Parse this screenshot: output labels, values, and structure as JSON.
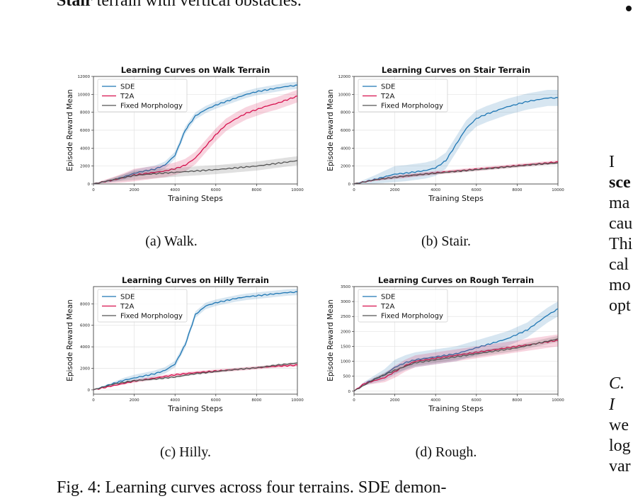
{
  "top_text": {
    "bold": "Stair",
    "rest": " terrain with vertical obstacles."
  },
  "right_column": {
    "lines": [
      "I",
      "sce",
      "ma",
      "cau",
      "Thi",
      "cal",
      "mo",
      "opt"
    ],
    "section": "C.",
    "lines2": [
      "I",
      "we",
      "log",
      "var"
    ]
  },
  "captions": [
    "(a) Walk.",
    "(b) Stair.",
    "(c) Hilly.",
    "(d) Rough."
  ],
  "figure_caption": "Fig. 4: Learning curves across four terrains. SDE demon-",
  "colors": {
    "SDE": "#1f77b4",
    "T2A": "#d6114e",
    "Fixed Morphology": "#555555"
  },
  "chart_data": [
    {
      "type": "line",
      "title": "Learning Curves on Walk Terrain",
      "xlabel": "Training Steps",
      "ylabel": "Episode Reward Mean",
      "xlim": [
        0,
        10000
      ],
      "ylim": [
        0,
        12000
      ],
      "xticks": [
        0,
        2000,
        4000,
        6000,
        8000,
        10000
      ],
      "yticks": [
        0,
        2000,
        4000,
        6000,
        8000,
        10000,
        12000
      ],
      "legend": "top-left",
      "grid": true,
      "series": [
        {
          "name": "SDE",
          "x": [
            0,
            500,
            1000,
            1500,
            2000,
            2500,
            3000,
            3500,
            4000,
            4500,
            5000,
            5500,
            6000,
            6500,
            7000,
            7500,
            8000,
            8500,
            9000,
            9500,
            10000
          ],
          "y": [
            0,
            250,
            450,
            800,
            1200,
            1450,
            1650,
            2100,
            3200,
            6000,
            7600,
            8300,
            8800,
            9200,
            9600,
            10000,
            10300,
            10500,
            10700,
            10900,
            11000
          ],
          "band": 400
        },
        {
          "name": "T2A",
          "x": [
            0,
            500,
            1000,
            1500,
            2000,
            2500,
            3000,
            3500,
            4000,
            4500,
            5000,
            5500,
            6000,
            6500,
            7000,
            7500,
            8000,
            8500,
            9000,
            9500,
            10000
          ],
          "y": [
            0,
            250,
            450,
            700,
            1000,
            1150,
            1300,
            1450,
            1700,
            2100,
            2900,
            4200,
            5500,
            6600,
            7300,
            7900,
            8300,
            8700,
            9000,
            9400,
            9800
          ],
          "band": 700
        },
        {
          "name": "Fixed Morphology",
          "x": [
            0,
            1000,
            2000,
            3000,
            4000,
            5000,
            6000,
            7000,
            8000,
            9000,
            10000
          ],
          "y": [
            0,
            500,
            950,
            1150,
            1300,
            1450,
            1600,
            1800,
            2000,
            2300,
            2600
          ],
          "band": 500
        }
      ]
    },
    {
      "type": "line",
      "title": "Learning Curves on Stair Terrain",
      "xlabel": "Training Steps",
      "ylabel": "Episode Reward Mean",
      "xlim": [
        0,
        10000
      ],
      "ylim": [
        0,
        12000
      ],
      "xticks": [
        0,
        2000,
        4000,
        6000,
        8000,
        10000
      ],
      "yticks": [
        0,
        2000,
        4000,
        6000,
        8000,
        10000,
        12000
      ],
      "legend": "top-left",
      "grid": true,
      "series": [
        {
          "name": "SDE",
          "x": [
            0,
            500,
            1000,
            1500,
            2000,
            2500,
            3000,
            3500,
            4000,
            4500,
            5000,
            5500,
            6000,
            6500,
            7000,
            7500,
            8000,
            8500,
            9000,
            9500,
            10000
          ],
          "y": [
            0,
            250,
            500,
            800,
            1100,
            1200,
            1350,
            1500,
            1800,
            2600,
            4400,
            6200,
            7300,
            7800,
            8200,
            8600,
            8900,
            9200,
            9400,
            9600,
            9600
          ],
          "band": 900
        },
        {
          "name": "T2A",
          "x": [
            0,
            1000,
            2000,
            3000,
            4000,
            5000,
            6000,
            7000,
            8000,
            9000,
            10000
          ],
          "y": [
            0,
            450,
            750,
            1000,
            1250,
            1450,
            1650,
            1850,
            2050,
            2250,
            2450
          ],
          "band": 200
        },
        {
          "name": "Fixed Morphology",
          "x": [
            0,
            1000,
            2000,
            3000,
            4000,
            5000,
            6000,
            7000,
            8000,
            9000,
            10000
          ],
          "y": [
            0,
            450,
            750,
            1000,
            1200,
            1400,
            1600,
            1800,
            2000,
            2200,
            2350
          ],
          "band": 150
        }
      ]
    },
    {
      "type": "line",
      "title": "Learning Curves on Hilly Terrain",
      "xlabel": "Training Steps",
      "ylabel": "Episode Reward Mean",
      "xlim": [
        0,
        10000
      ],
      "ylim": [
        -400,
        9600
      ],
      "xticks": [
        0,
        2000,
        4000,
        6000,
        8000,
        10000
      ],
      "yticks": [
        0,
        2000,
        4000,
        6000,
        8000
      ],
      "legend": "top-left",
      "grid": true,
      "series": [
        {
          "name": "SDE",
          "x": [
            0,
            500,
            1000,
            1500,
            2000,
            2500,
            3000,
            3500,
            4000,
            4500,
            5000,
            5500,
            6000,
            6500,
            7000,
            7500,
            8000,
            8500,
            9000,
            9500,
            10000
          ],
          "y": [
            0,
            300,
            600,
            900,
            1100,
            1300,
            1500,
            1800,
            2400,
            4200,
            7000,
            7800,
            8100,
            8300,
            8500,
            8650,
            8750,
            8850,
            8950,
            9050,
            9100
          ],
          "band": 300
        },
        {
          "name": "T2A",
          "x": [
            0,
            1000,
            2000,
            3000,
            4000,
            5000,
            6000,
            7000,
            8000,
            9000,
            10000
          ],
          "y": [
            0,
            400,
            800,
            1100,
            1400,
            1600,
            1750,
            1900,
            2050,
            2200,
            2300
          ],
          "band": 150
        },
        {
          "name": "Fixed Morphology",
          "x": [
            0,
            1000,
            2000,
            3000,
            4000,
            5000,
            6000,
            7000,
            8000,
            9000,
            10000
          ],
          "y": [
            0,
            550,
            850,
            1000,
            1200,
            1500,
            1700,
            1900,
            2050,
            2300,
            2500
          ],
          "band": 100
        }
      ]
    },
    {
      "type": "line",
      "title": "Learning Curves on Rough Terrain",
      "xlabel": "Training Steps",
      "ylabel": "Episode Reward Mean",
      "xlim": [
        0,
        10000
      ],
      "ylim": [
        -100,
        3500
      ],
      "xticks": [
        0,
        2000,
        4000,
        6000,
        8000,
        10000
      ],
      "yticks": [
        0,
        500,
        1000,
        1500,
        2000,
        2500,
        3000,
        3500
      ],
      "legend": "top-left",
      "grid": true,
      "series": [
        {
          "name": "SDE",
          "x": [
            0,
            500,
            1000,
            1500,
            2000,
            2500,
            3000,
            3500,
            4000,
            4500,
            5000,
            5500,
            6000,
            6500,
            7000,
            7500,
            8000,
            8500,
            9000,
            9500,
            10000
          ],
          "y": [
            0,
            250,
            400,
            550,
            800,
            950,
            1050,
            1100,
            1150,
            1200,
            1250,
            1350,
            1450,
            1550,
            1650,
            1750,
            1900,
            2050,
            2300,
            2550,
            2750
          ],
          "band": 250
        },
        {
          "name": "T2A",
          "x": [
            0,
            500,
            1000,
            1500,
            2000,
            2500,
            3000,
            3500,
            4000,
            4500,
            5000,
            5500,
            6000,
            6500,
            7000,
            7500,
            8000,
            8500,
            9000,
            9500,
            10000
          ],
          "y": [
            0,
            250,
            350,
            450,
            650,
            850,
            1000,
            1050,
            1100,
            1150,
            1200,
            1250,
            1300,
            1350,
            1400,
            1450,
            1500,
            1550,
            1600,
            1650,
            1700
          ],
          "band": 200
        },
        {
          "name": "Fixed Morphology",
          "x": [
            0,
            1000,
            2000,
            3000,
            4000,
            5000,
            6000,
            7000,
            8000,
            9000,
            10000
          ],
          "y": [
            0,
            400,
            700,
            950,
            1050,
            1150,
            1250,
            1350,
            1450,
            1600,
            1750
          ],
          "band": 100
        }
      ]
    }
  ]
}
